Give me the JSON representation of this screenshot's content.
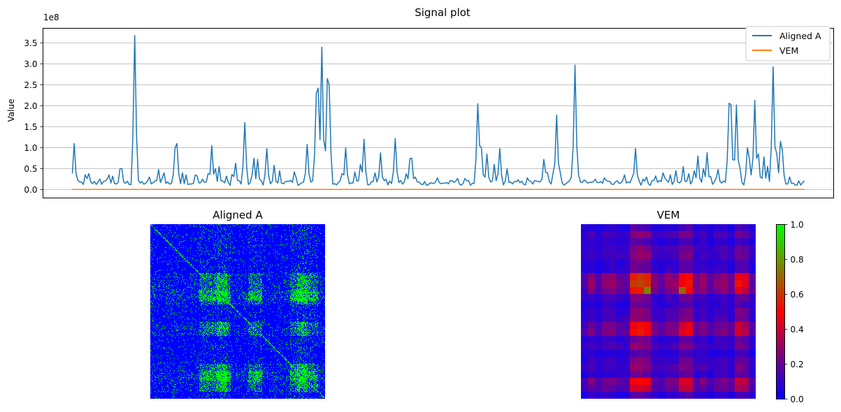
{
  "chart_data": [
    {
      "type": "line",
      "title": "Signal plot",
      "xlabel": "",
      "ylabel": "Value",
      "y_scale_label": "1e8",
      "ylim": [
        -0.2,
        3.85
      ],
      "yticks": [
        0.0,
        0.5,
        1.0,
        1.5,
        2.0,
        2.5,
        3.0,
        3.5
      ],
      "ytick_labels": [
        "0.0",
        "0.5",
        "1.0",
        "1.5",
        "2.0",
        "2.5",
        "3.0",
        "3.5"
      ],
      "xticks_visible": false,
      "grid": "horizontal",
      "legend_position": "top-right",
      "n_points": 400,
      "xlim": [
        -16,
        415
      ],
      "series": [
        {
          "name": "Aligned A",
          "color": "#1f77b4",
          "baseline": 0.1,
          "peaks": [
            [
              1,
              1.1
            ],
            [
              7,
              0.35
            ],
            [
              9,
              0.38
            ],
            [
              14,
              0.18
            ],
            [
              19,
              0.25
            ],
            [
              20,
              0.35
            ],
            [
              22,
              0.32
            ],
            [
              26,
              0.5
            ],
            [
              27,
              0.5
            ],
            [
              34,
              3.68
            ],
            [
              42,
              0.3
            ],
            [
              47,
              0.48
            ],
            [
              50,
              0.4
            ],
            [
              56,
              1.0
            ],
            [
              57,
              1.1
            ],
            [
              60,
              0.4
            ],
            [
              62,
              0.35
            ],
            [
              67,
              0.35
            ],
            [
              71,
              0.25
            ],
            [
              74,
              0.38
            ],
            [
              76,
              1.05
            ],
            [
              78,
              0.5
            ],
            [
              80,
              0.55
            ],
            [
              84,
              0.32
            ],
            [
              89,
              0.63
            ],
            [
              94,
              1.6
            ],
            [
              99,
              0.75
            ],
            [
              101,
              0.72
            ],
            [
              106,
              0.98
            ],
            [
              110,
              0.58
            ],
            [
              113,
              0.45
            ],
            [
              121,
              0.42
            ],
            [
              128,
              1.08
            ],
            [
              133,
              2.3
            ],
            [
              134,
              2.42
            ],
            [
              136,
              3.4
            ],
            [
              139,
              2.65
            ],
            [
              140,
              2.5
            ],
            [
              147,
              0.38
            ],
            [
              149,
              1.0
            ],
            [
              154,
              0.42
            ],
            [
              157,
              0.6
            ],
            [
              159,
              1.2
            ],
            [
              165,
              0.4
            ],
            [
              168,
              0.88
            ],
            [
              171,
              0.25
            ],
            [
              176,
              1.22
            ],
            [
              182,
              0.38
            ],
            [
              184,
              0.74
            ],
            [
              185,
              0.75
            ],
            [
              187,
              0.3
            ],
            [
              199,
              0.28
            ],
            [
              209,
              0.2
            ],
            [
              221,
              2.05
            ],
            [
              222,
              1.05
            ],
            [
              223,
              1.0
            ],
            [
              226,
              0.85
            ],
            [
              230,
              0.6
            ],
            [
              233,
              0.98
            ],
            [
              237,
              0.5
            ],
            [
              248,
              0.28
            ],
            [
              252,
              0.22
            ],
            [
              257,
              0.72
            ],
            [
              259,
              0.4
            ],
            [
              262,
              0.38
            ],
            [
              264,
              1.78
            ],
            [
              266,
              0.4
            ],
            [
              272,
              0.3
            ],
            [
              274,
              2.97
            ],
            [
              285,
              0.25
            ],
            [
              290,
              0.28
            ],
            [
              301,
              0.35
            ],
            [
              307,
              0.98
            ],
            [
              313,
              0.3
            ],
            [
              322,
              0.4
            ],
            [
              326,
              0.35
            ],
            [
              329,
              0.45
            ],
            [
              333,
              0.55
            ],
            [
              336,
              0.38
            ],
            [
              339,
              0.45
            ],
            [
              341,
              0.8
            ],
            [
              344,
              0.5
            ],
            [
              346,
              0.88
            ],
            [
              352,
              0.48
            ],
            [
              358,
              2.06
            ],
            [
              359,
              2.03
            ],
            [
              362,
              2.02
            ],
            [
              364,
              0.5
            ],
            [
              368,
              1.0
            ],
            [
              369,
              0.75
            ],
            [
              372,
              2.13
            ],
            [
              374,
              0.85
            ],
            [
              377,
              0.78
            ],
            [
              379,
              0.55
            ],
            [
              382,
              2.93
            ],
            [
              384,
              0.85
            ],
            [
              386,
              1.15
            ],
            [
              387,
              0.95
            ],
            [
              391,
              0.3
            ],
            [
              392,
              0.15
            ]
          ]
        },
        {
          "name": "VEM",
          "color": "#ff7f0e",
          "baseline": 0.005
        }
      ]
    },
    {
      "type": "heatmap",
      "title": "Aligned A",
      "colormap": [
        "#0000ff",
        "#00ff00"
      ],
      "size": 250,
      "axes_visible": false
    },
    {
      "type": "heatmap",
      "title": "VEM",
      "colormap": [
        "#0000ff",
        "#ff0000",
        "#00ff00"
      ],
      "axes_visible": false,
      "colorbar": {
        "ticks": [
          0.0,
          0.2,
          0.4,
          0.6,
          0.8,
          1.0
        ],
        "tick_labels": [
          "0.0",
          "0.2",
          "0.4",
          "0.6",
          "0.8",
          "1.0"
        ]
      }
    }
  ]
}
